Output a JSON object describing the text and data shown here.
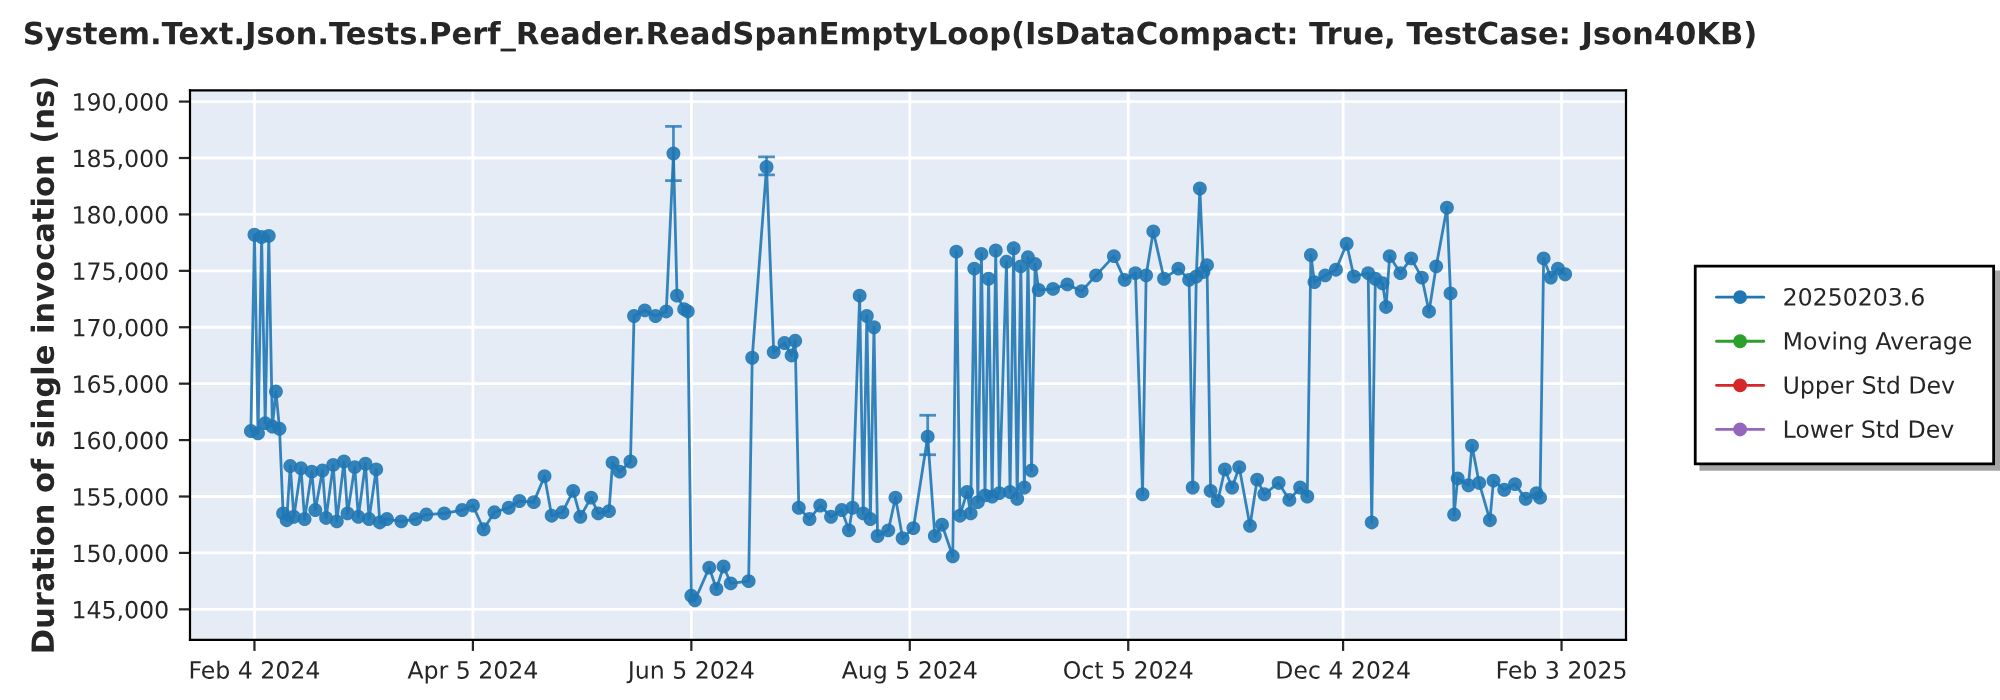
{
  "chart_data": {
    "type": "line",
    "title": "System.Text.Json.Tests.Perf_Reader.ReadSpanEmptyLoop(IsDataCompact: True, TestCase: Json40KB)",
    "ylabel": "Duration of single invocation (ns)",
    "xlim": [
      "2024-01-17",
      "2025-02-21"
    ],
    "xticks": [
      {
        "value": "2024-02-04",
        "label": "Feb 4 2024"
      },
      {
        "value": "2024-04-05",
        "label": "Apr 5 2024"
      },
      {
        "value": "2024-06-05",
        "label": "Jun 5 2024"
      },
      {
        "value": "2024-08-05",
        "label": "Aug 5 2024"
      },
      {
        "value": "2024-10-05",
        "label": "Oct 5 2024"
      },
      {
        "value": "2024-12-04",
        "label": "Dec 4 2024"
      },
      {
        "value": "2025-02-03",
        "label": "Feb 3 2025"
      }
    ],
    "ylim": [
      142300,
      191000
    ],
    "yticks": [
      {
        "value": 145000,
        "label": "145,000"
      },
      {
        "value": 150000,
        "label": "150,000"
      },
      {
        "value": 155000,
        "label": "155,000"
      },
      {
        "value": 160000,
        "label": "160,000"
      },
      {
        "value": 165000,
        "label": "165,000"
      },
      {
        "value": 170000,
        "label": "170,000"
      },
      {
        "value": 175000,
        "label": "175,000"
      },
      {
        "value": 180000,
        "label": "180,000"
      },
      {
        "value": 185000,
        "label": "185,000"
      },
      {
        "value": 190000,
        "label": "190,000"
      }
    ],
    "grid": true,
    "legend": "right",
    "marker": "circle",
    "line_style": "solid",
    "series": [
      {
        "name": "20250203.6",
        "color": "#1f77b4",
        "x": [
          "2024-02-03",
          "2024-02-04",
          "2024-02-05",
          "2024-02-06",
          "2024-02-07",
          "2024-02-08",
          "2024-02-09",
          "2024-02-10",
          "2024-02-11",
          "2024-02-12",
          "2024-02-13",
          "2024-02-14",
          "2024-02-15",
          "2024-02-17",
          "2024-02-18",
          "2024-02-20",
          "2024-02-21",
          "2024-02-23",
          "2024-02-24",
          "2024-02-26",
          "2024-02-27",
          "2024-02-29",
          "2024-03-01",
          "2024-03-03",
          "2024-03-04",
          "2024-03-06",
          "2024-03-07",
          "2024-03-09",
          "2024-03-10",
          "2024-03-12",
          "2024-03-16",
          "2024-03-20",
          "2024-03-23",
          "2024-03-28",
          "2024-04-02",
          "2024-04-05",
          "2024-04-08",
          "2024-04-11",
          "2024-04-15",
          "2024-04-18",
          "2024-04-22",
          "2024-04-25",
          "2024-04-27",
          "2024-04-30",
          "2024-05-03",
          "2024-05-05",
          "2024-05-08",
          "2024-05-10",
          "2024-05-13",
          "2024-05-14",
          "2024-05-16",
          "2024-05-19",
          "2024-05-20",
          "2024-05-23",
          "2024-05-26",
          "2024-05-29",
          "2024-05-31",
          "2024-06-01",
          "2024-06-03",
          "2024-06-04",
          "2024-06-05",
          "2024-06-06",
          "2024-06-10",
          "2024-06-12",
          "2024-06-14",
          "2024-06-16",
          "2024-06-21",
          "2024-06-22",
          "2024-06-26",
          "2024-06-28",
          "2024-07-01",
          "2024-07-03",
          "2024-07-04",
          "2024-07-05",
          "2024-07-08",
          "2024-07-11",
          "2024-07-14",
          "2024-07-17",
          "2024-07-19",
          "2024-07-20",
          "2024-07-22",
          "2024-07-23",
          "2024-07-24",
          "2024-07-25",
          "2024-07-26",
          "2024-07-27",
          "2024-07-30",
          "2024-08-01",
          "2024-08-03",
          "2024-08-06",
          "2024-08-10",
          "2024-08-12",
          "2024-08-14",
          "2024-08-17",
          "2024-08-18",
          "2024-08-19",
          "2024-08-21",
          "2024-08-22",
          "2024-08-23",
          "2024-08-24",
          "2024-08-25",
          "2024-08-26",
          "2024-08-27",
          "2024-08-28",
          "2024-08-29",
          "2024-08-30",
          "2024-09-01",
          "2024-09-02",
          "2024-09-03",
          "2024-09-04",
          "2024-09-05",
          "2024-09-06",
          "2024-09-07",
          "2024-09-08",
          "2024-09-09",
          "2024-09-10",
          "2024-09-14",
          "2024-09-18",
          "2024-09-22",
          "2024-09-26",
          "2024-10-01",
          "2024-10-04",
          "2024-10-07",
          "2024-10-09",
          "2024-10-10",
          "2024-10-12",
          "2024-10-15",
          "2024-10-19",
          "2024-10-22",
          "2024-10-23",
          "2024-10-24",
          "2024-10-25",
          "2024-10-26",
          "2024-10-27",
          "2024-10-28",
          "2024-10-30",
          "2024-11-01",
          "2024-11-03",
          "2024-11-05",
          "2024-11-08",
          "2024-11-10",
          "2024-11-12",
          "2024-11-16",
          "2024-11-19",
          "2024-11-22",
          "2024-11-24",
          "2024-11-25",
          "2024-11-26",
          "2024-11-29",
          "2024-12-02",
          "2024-12-05",
          "2024-12-07",
          "2024-12-11",
          "2024-12-12",
          "2024-12-13",
          "2024-12-15",
          "2024-12-16",
          "2024-12-17",
          "2024-12-20",
          "2024-12-23",
          "2024-12-26",
          "2024-12-28",
          "2024-12-30",
          "2025-01-02",
          "2025-01-03",
          "2025-01-04",
          "2025-01-05",
          "2025-01-08",
          "2025-01-09",
          "2025-01-11",
          "2025-01-14",
          "2025-01-15",
          "2025-01-18",
          "2025-01-21",
          "2025-01-24",
          "2025-01-27",
          "2025-01-28",
          "2025-01-29",
          "2025-01-31",
          "2025-02-02",
          "2025-02-04"
        ],
        "values": [
          160800,
          178200,
          160600,
          178000,
          161500,
          178100,
          161200,
          164300,
          161000,
          153500,
          152900,
          157700,
          153200,
          157500,
          153000,
          157200,
          153800,
          157300,
          153100,
          157800,
          152800,
          158100,
          153500,
          157600,
          153200,
          157900,
          153000,
          157400,
          152700,
          153000,
          152800,
          153000,
          153400,
          153500,
          153800,
          154200,
          152100,
          153600,
          154000,
          154600,
          154500,
          156800,
          153300,
          153600,
          155500,
          153200,
          154900,
          153500,
          153700,
          158000,
          157200,
          158100,
          171000,
          171500,
          171000,
          171400,
          185400,
          172800,
          171600,
          171400,
          146200,
          145800,
          148700,
          146800,
          148800,
          147300,
          147500,
          167300,
          184200,
          167800,
          168600,
          167500,
          168800,
          154000,
          153000,
          154200,
          153200,
          153800,
          152000,
          154000,
          172800,
          153500,
          171000,
          153000,
          170000,
          151500,
          152000,
          154900,
          151300,
          152200,
          160300,
          151500,
          152500,
          149700,
          176700,
          153300,
          155400,
          153500,
          175200,
          154500,
          176500,
          155100,
          174300,
          155000,
          176800,
          155300,
          175800,
          155400,
          177000,
          154800,
          175400,
          155800,
          176200,
          157300,
          175600,
          173300,
          173400,
          173800,
          173200,
          174600,
          176300,
          174200,
          174800,
          155200,
          174600,
          178500,
          174300,
          175200,
          174200,
          155800,
          174500,
          182300,
          174900,
          175500,
          155500,
          154600,
          157400,
          155800,
          157600,
          152400,
          156500,
          155200,
          156200,
          154700,
          155800,
          155000,
          176400,
          174000,
          174600,
          175100,
          177400,
          174500,
          174800,
          152700,
          174300,
          173900,
          171800,
          176300,
          174800,
          176100,
          174400,
          171400,
          175400,
          180600,
          173000,
          153400,
          156600,
          156000,
          159500,
          156200,
          152900,
          156400,
          155600,
          156100,
          154800,
          155300,
          154900,
          176100,
          174400,
          175200,
          174700
        ],
        "errors": [
          null,
          null,
          null,
          null,
          null,
          null,
          null,
          null,
          null,
          null,
          null,
          null,
          null,
          null,
          null,
          null,
          null,
          null,
          null,
          null,
          null,
          null,
          null,
          null,
          null,
          null,
          null,
          null,
          null,
          null,
          null,
          null,
          null,
          null,
          null,
          null,
          null,
          null,
          null,
          null,
          null,
          null,
          null,
          null,
          null,
          null,
          null,
          null,
          null,
          null,
          null,
          null,
          null,
          null,
          null,
          null,
          [
            183000,
            187800
          ],
          null,
          null,
          null,
          null,
          null,
          null,
          null,
          null,
          null,
          null,
          null,
          [
            183500,
            185100
          ],
          null,
          null,
          null,
          null,
          null,
          null,
          null,
          null,
          null,
          null,
          null,
          null,
          null,
          null,
          null,
          null,
          null,
          null,
          null,
          null,
          null,
          [
            158700,
            162200
          ],
          null,
          null,
          null,
          null,
          null,
          null,
          null,
          null,
          null,
          null,
          null,
          null,
          null,
          null,
          null,
          null,
          null,
          null,
          null,
          null,
          null,
          null,
          null,
          null,
          null,
          null,
          null,
          null,
          null,
          null,
          null,
          null,
          null,
          null,
          null,
          null,
          null,
          null,
          null,
          null,
          null,
          null,
          null,
          null,
          null,
          null,
          null,
          null,
          null,
          null,
          null,
          null,
          null,
          null,
          null,
          null,
          null,
          null,
          null,
          null,
          null,
          null,
          null,
          null,
          null,
          null,
          null,
          null,
          null,
          null,
          null,
          null,
          null,
          null,
          null,
          null,
          null,
          null,
          null,
          null,
          null,
          null,
          null,
          null,
          null,
          null,
          null,
          null,
          null,
          null
        ]
      },
      {
        "name": "Moving Average",
        "color": "#2ca02c"
      },
      {
        "name": "Upper Std Dev",
        "color": "#d62728"
      },
      {
        "name": "Lower Std Dev",
        "color": "#9467bd"
      }
    ]
  }
}
